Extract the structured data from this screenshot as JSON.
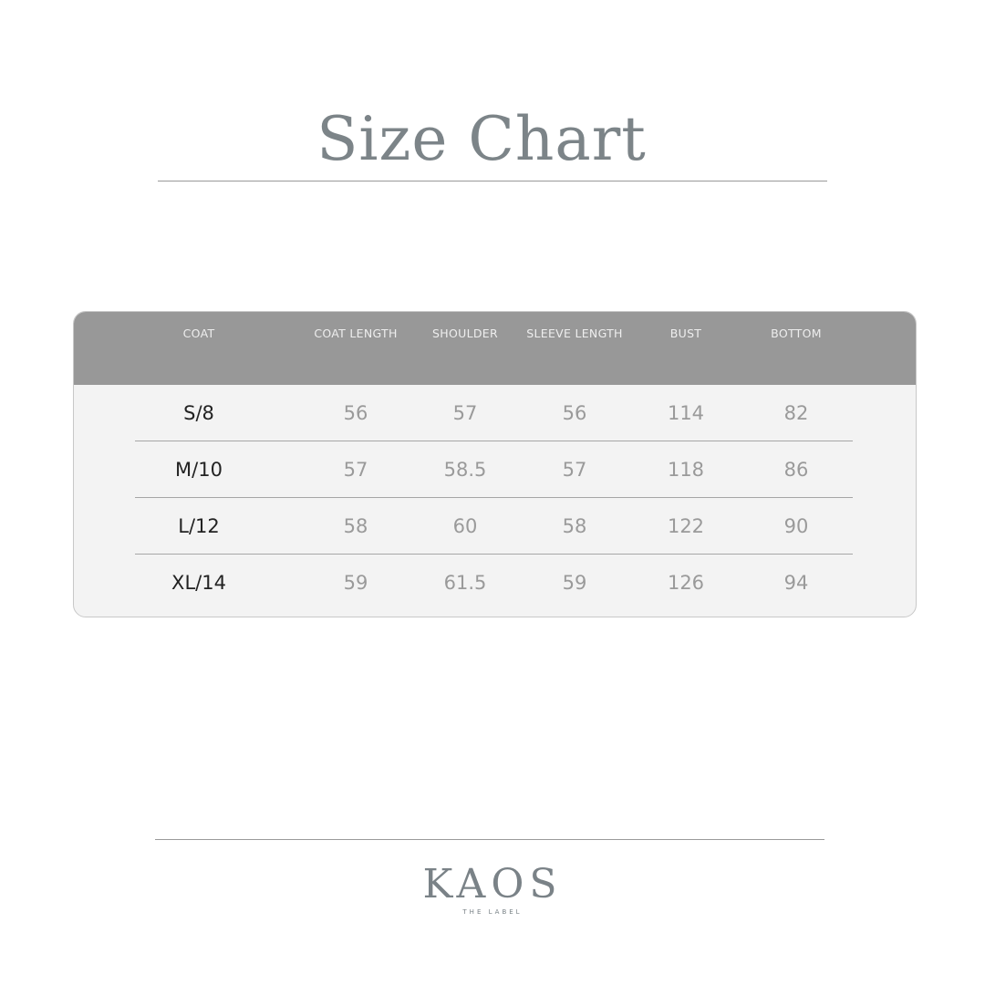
{
  "title": "Size Chart",
  "table": {
    "headers": [
      "COAT",
      "COAT LENGTH",
      "SHOULDER",
      "SLEEVE LENGTH",
      "BUST",
      "BOTTOM"
    ],
    "rows": [
      [
        "S/8",
        "56",
        "57",
        "56",
        "114",
        "82"
      ],
      [
        "M/10",
        "57",
        "58.5",
        "57",
        "118",
        "86"
      ],
      [
        "L/12",
        "58",
        "60",
        "58",
        "122",
        "90"
      ],
      [
        "XL/14",
        "59",
        "61.5",
        "59",
        "126",
        "94"
      ]
    ]
  },
  "brand": {
    "name": "KAOS",
    "tagline": "THE LABEL"
  },
  "colors": {
    "header_bg": "#989898",
    "title": "#7c8488",
    "body_bg": "#f3f3f3"
  }
}
